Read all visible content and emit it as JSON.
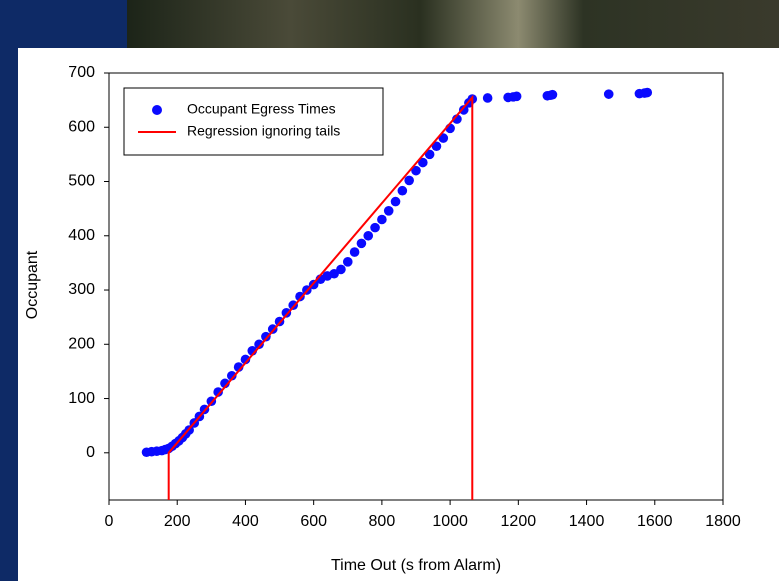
{
  "chart_data": {
    "type": "scatter",
    "xlabel": "Time Out (s from Alarm)",
    "ylabel": "Occupant",
    "xlim": [
      0,
      1800
    ],
    "ylim": [
      -87,
      700
    ],
    "xticks": [
      0,
      200,
      400,
      600,
      800,
      1000,
      1200,
      1400,
      1600,
      1800
    ],
    "yticks": [
      0,
      100,
      200,
      300,
      400,
      500,
      600,
      700
    ],
    "legend": "upper left",
    "series": [
      {
        "name": "Occupant Egress Times",
        "type": "scatter",
        "color": "#0a0aff",
        "x": [
          110,
          125,
          140,
          155,
          165,
          175,
          185,
          195,
          205,
          215,
          225,
          235,
          250,
          265,
          280,
          300,
          320,
          340,
          360,
          380,
          400,
          420,
          440,
          460,
          480,
          500,
          520,
          540,
          560,
          580,
          600,
          620,
          640,
          660,
          680,
          700,
          720,
          740,
          760,
          780,
          800,
          820,
          840,
          860,
          880,
          900,
          920,
          940,
          960,
          980,
          1000,
          1020,
          1040,
          1055,
          1065,
          1110,
          1170,
          1185,
          1195,
          1285,
          1295,
          1300,
          1465,
          1555,
          1570,
          1578
        ],
        "values": [
          1,
          2,
          3,
          4,
          6,
          8,
          12,
          17,
          22,
          28,
          35,
          42,
          55,
          67,
          80,
          95,
          112,
          128,
          142,
          158,
          172,
          188,
          200,
          214,
          228,
          242,
          258,
          272,
          288,
          300,
          310,
          320,
          326,
          330,
          338,
          352,
          370,
          386,
          400,
          415,
          430,
          446,
          463,
          483,
          502,
          520,
          535,
          550,
          565,
          580,
          598,
          615,
          632,
          645,
          652,
          654,
          655,
          656,
          657,
          658,
          659,
          660,
          661,
          662,
          663,
          664
        ]
      },
      {
        "name": "Regression ignoring tails",
        "type": "line",
        "color": "#ff0000",
        "x": [
          175,
          175,
          1065,
          1065
        ],
        "values": [
          -87,
          0,
          655,
          -87
        ]
      }
    ]
  }
}
